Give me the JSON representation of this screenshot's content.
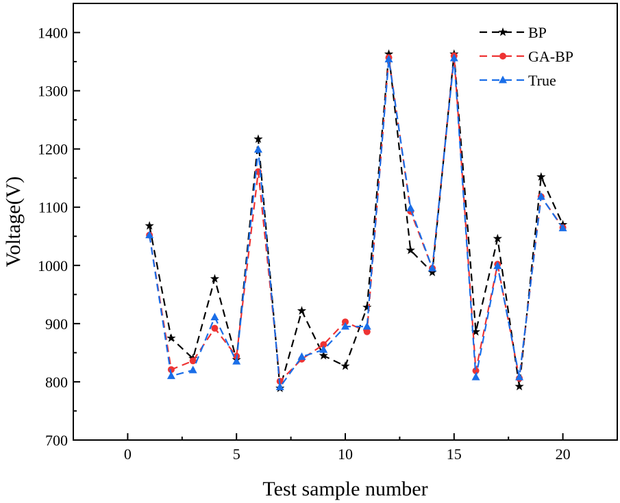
{
  "chart_data": {
    "type": "line",
    "title": "",
    "xlabel": "Test sample number",
    "ylabel": "Voltage(V)",
    "xlim": [
      -2.5,
      22.5
    ],
    "ylim": [
      700,
      1450
    ],
    "x_ticks": [
      0,
      5,
      10,
      15,
      20
    ],
    "y_ticks": [
      700,
      800,
      900,
      1000,
      1100,
      1200,
      1300,
      1400
    ],
    "x_tick_labels": [
      "0",
      "5",
      "10",
      "15",
      "20"
    ],
    "y_tick_labels": [
      "700",
      "800",
      "900",
      "1000",
      "1100",
      "1200",
      "1300",
      "1400"
    ],
    "legend_position": "top-right",
    "x": [
      1,
      2,
      3,
      4,
      5,
      6,
      7,
      8,
      9,
      10,
      11,
      12,
      13,
      14,
      15,
      16,
      17,
      18,
      19,
      20
    ],
    "series": [
      {
        "name": "BP",
        "color": "#000000",
        "marker": "star",
        "values": [
          1068,
          875,
          840,
          977,
          838,
          1217,
          789,
          922,
          845,
          827,
          928,
          1363,
          1026,
          988,
          1363,
          886,
          1046,
          792,
          1152,
          1070
        ]
      },
      {
        "name": "GA-BP",
        "color": "#ee3333",
        "marker": "circle",
        "values": [
          1052,
          821,
          836,
          892,
          844,
          1161,
          801,
          839,
          864,
          903,
          886,
          1357,
          1093,
          995,
          1360,
          819,
          1002,
          806,
          1118,
          1065
        ]
      },
      {
        "name": "True",
        "color": "#1a6ee8",
        "marker": "triangle",
        "values": [
          1052,
          810,
          820,
          911,
          835,
          1199,
          791,
          843,
          855,
          895,
          895,
          1354,
          1098,
          995,
          1356,
          808,
          999,
          808,
          1118,
          1064
        ]
      }
    ]
  }
}
